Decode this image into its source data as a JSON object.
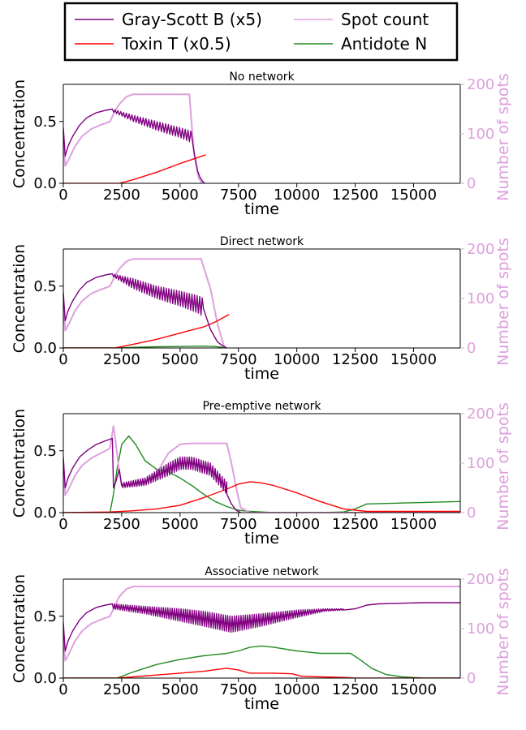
{
  "colors": {
    "B": "#800080",
    "T": "#ff0000",
    "N": "#228b22",
    "spots": "#dda0dd",
    "axis": "#000000"
  },
  "legend": {
    "entries": [
      {
        "key": "B",
        "label": "Gray-Scott B (x5)"
      },
      {
        "key": "spots",
        "label": "Spot count"
      },
      {
        "key": "T",
        "label": "Toxin T (x0.5)"
      },
      {
        "key": "N",
        "label": "Antidote N"
      }
    ]
  },
  "chart_data": [
    {
      "type": "line",
      "title": "No network",
      "xlabel": "time",
      "ylabel": "Concentration",
      "y2label": "Number of spots",
      "xlim": [
        0,
        17000
      ],
      "ylim": [
        0,
        0.8
      ],
      "y2lim": [
        0,
        200
      ],
      "xticks": [
        0,
        2500,
        5000,
        7500,
        10000,
        12500,
        15000
      ],
      "yticks": [
        0.0,
        0.5
      ],
      "y2ticks": [
        0,
        100,
        200
      ],
      "series": [
        {
          "key": "B",
          "name": "Gray-Scott B (x5)",
          "axis": "left",
          "x": [
            0,
            80,
            200,
            400,
            700,
            1000,
            1400,
            1800,
            2100
          ],
          "y": [
            0.45,
            0.22,
            0.3,
            0.38,
            0.47,
            0.53,
            0.57,
            0.59,
            0.6
          ],
          "osc": {
            "x": [
              2100,
              3000,
              4000,
              5000,
              5500
            ],
            "lo": [
              0.58,
              0.5,
              0.43,
              0.37,
              0.33
            ],
            "hi": [
              0.6,
              0.55,
              0.5,
              0.45,
              0.42
            ],
            "period": 120
          },
          "tail": {
            "x": [
              5500,
              5600,
              5750,
              5850,
              5950,
              6050
            ],
            "y": [
              0.38,
              0.25,
              0.1,
              0.05,
              0.02,
              0.0
            ]
          }
        },
        {
          "key": "T",
          "name": "Toxin T (x0.5)",
          "axis": "left",
          "x": [
            0,
            2400,
            3000,
            4000,
            5000,
            6100
          ],
          "y": [
            0,
            0,
            0.03,
            0.09,
            0.16,
            0.23
          ]
        },
        {
          "key": "spots",
          "name": "Spot count",
          "axis": "right",
          "x": [
            0,
            80,
            250,
            500,
            800,
            1200,
            1600,
            2000,
            2200,
            2400,
            2700,
            3000,
            5400,
            5480,
            5600,
            5800,
            5950
          ],
          "y": [
            100,
            35,
            50,
            75,
            95,
            110,
            118,
            125,
            145,
            160,
            175,
            180,
            180,
            130,
            60,
            10,
            0
          ]
        }
      ]
    },
    {
      "type": "line",
      "title": "Direct network",
      "xlabel": "time",
      "ylabel": "Concentration",
      "y2label": "Number of spots",
      "xlim": [
        0,
        17000
      ],
      "ylim": [
        0,
        0.8
      ],
      "y2lim": [
        0,
        200
      ],
      "xticks": [
        0,
        2500,
        5000,
        7500,
        10000,
        12500,
        15000
      ],
      "yticks": [
        0.0,
        0.5
      ],
      "y2ticks": [
        0,
        100,
        200
      ],
      "series": [
        {
          "key": "B",
          "name": "Gray-Scott B (x5)",
          "axis": "left",
          "x": [
            0,
            80,
            200,
            400,
            700,
            1000,
            1400,
            1800,
            2100
          ],
          "y": [
            0.45,
            0.22,
            0.3,
            0.38,
            0.47,
            0.53,
            0.57,
            0.59,
            0.6
          ],
          "osc": {
            "x": [
              2100,
              3000,
              4000,
              5000,
              5800,
              6000
            ],
            "lo": [
              0.58,
              0.48,
              0.4,
              0.34,
              0.28,
              0.25
            ],
            "hi": [
              0.6,
              0.56,
              0.5,
              0.46,
              0.42,
              0.4
            ],
            "period": 110
          },
          "tail": {
            "x": [
              6000,
              6300,
              6600,
              6800,
              7000
            ],
            "y": [
              0.32,
              0.15,
              0.05,
              0.02,
              0.0
            ]
          }
        },
        {
          "key": "T",
          "name": "Toxin T (x0.5)",
          "axis": "left",
          "x": [
            0,
            2200,
            3000,
            4000,
            5000,
            6000,
            6500,
            7100
          ],
          "y": [
            0,
            0,
            0.03,
            0.07,
            0.12,
            0.17,
            0.21,
            0.27
          ]
        },
        {
          "key": "N",
          "name": "Antidote N",
          "axis": "left",
          "x": [
            0,
            2200,
            3000,
            4000,
            5000,
            6000,
            6500,
            6800,
            7000
          ],
          "y": [
            0,
            0,
            0.005,
            0.01,
            0.012,
            0.015,
            0.012,
            0.005,
            0
          ]
        },
        {
          "key": "spots",
          "name": "Spot count",
          "axis": "right",
          "x": [
            0,
            80,
            250,
            500,
            800,
            1200,
            1600,
            2000,
            2200,
            2400,
            2700,
            3000,
            5900,
            6000,
            6300,
            6600,
            6900
          ],
          "y": [
            100,
            35,
            50,
            75,
            95,
            110,
            118,
            125,
            145,
            160,
            175,
            180,
            180,
            165,
            120,
            50,
            0
          ]
        }
      ]
    },
    {
      "type": "line",
      "title": "Pre-emptive network",
      "xlabel": "time",
      "ylabel": "Concentration",
      "y2label": "Number of spots",
      "xlim": [
        0,
        17000
      ],
      "ylim": [
        0,
        0.8
      ],
      "y2lim": [
        0,
        200
      ],
      "xticks": [
        0,
        2500,
        5000,
        7500,
        10000,
        12500,
        15000
      ],
      "yticks": [
        0.0,
        0.5
      ],
      "y2ticks": [
        0,
        100,
        200
      ],
      "series": [
        {
          "key": "B",
          "name": "Gray-Scott B (x5)",
          "axis": "left",
          "x": [
            0,
            80,
            200,
            400,
            700,
            1000,
            1400,
            1800,
            2100,
            2150,
            2250,
            2400,
            2500
          ],
          "y": [
            0.45,
            0.2,
            0.28,
            0.36,
            0.45,
            0.5,
            0.55,
            0.58,
            0.6,
            0.2,
            0.25,
            0.35,
            0.22
          ],
          "osc": {
            "x": [
              2500,
              3500,
              4500,
              5000,
              5500,
              6300,
              7000
            ],
            "lo": [
              0.2,
              0.22,
              0.3,
              0.35,
              0.35,
              0.3,
              0.15
            ],
            "hi": [
              0.24,
              0.28,
              0.4,
              0.45,
              0.45,
              0.4,
              0.25
            ],
            "period": 100
          },
          "tail": {
            "x": [
              7000,
              7200,
              7400,
              7600
            ],
            "y": [
              0.15,
              0.07,
              0.02,
              0.0
            ]
          }
        },
        {
          "key": "T",
          "name": "Toxin T (x0.5)",
          "axis": "left",
          "x": [
            0,
            2000,
            3000,
            4000,
            5000,
            6000,
            7000,
            7500,
            8000,
            8500,
            9000,
            10000,
            11000,
            12000,
            13000,
            14000,
            17000
          ],
          "y": [
            0,
            0.005,
            0.015,
            0.03,
            0.06,
            0.12,
            0.19,
            0.23,
            0.25,
            0.24,
            0.22,
            0.16,
            0.09,
            0.03,
            0.01,
            0.01,
            0.01
          ]
        },
        {
          "key": "N",
          "name": "Antidote N",
          "axis": "left",
          "x": [
            0,
            2000,
            2150,
            2300,
            2500,
            2800,
            3100,
            3500,
            4000,
            4500,
            5000,
            5500,
            6000,
            6500,
            7000,
            7500,
            8000,
            9000,
            10000,
            11000,
            12000,
            12500,
            13000,
            15000,
            17000
          ],
          "y": [
            0,
            0,
            0.15,
            0.35,
            0.55,
            0.62,
            0.55,
            0.42,
            0.35,
            0.33,
            0.28,
            0.22,
            0.15,
            0.09,
            0.05,
            0.02,
            0.01,
            0,
            0,
            0,
            0.005,
            0.03,
            0.07,
            0.08,
            0.09
          ]
        },
        {
          "key": "spots",
          "name": "Spot count",
          "axis": "right",
          "x": [
            0,
            80,
            250,
            500,
            800,
            1200,
            1600,
            2000,
            2150,
            2250,
            2400,
            2500,
            3000,
            3500,
            4000,
            4500,
            5000,
            5500,
            7000,
            7200,
            7400,
            7600,
            8000,
            17000
          ],
          "y": [
            100,
            35,
            50,
            75,
            95,
            110,
            120,
            130,
            175,
            140,
            80,
            55,
            55,
            60,
            80,
            120,
            138,
            140,
            140,
            100,
            50,
            10,
            0,
            0
          ]
        }
      ]
    },
    {
      "type": "line",
      "title": "Associative network",
      "xlabel": "time",
      "ylabel": "Concentration",
      "y2label": "Number of spots",
      "xlim": [
        0,
        17000
      ],
      "ylim": [
        0,
        0.8
      ],
      "y2lim": [
        0,
        200
      ],
      "xticks": [
        0,
        2500,
        5000,
        7500,
        10000,
        12500,
        15000
      ],
      "yticks": [
        0.0,
        0.5
      ],
      "y2ticks": [
        0,
        100,
        200
      ],
      "series": [
        {
          "key": "B",
          "name": "Gray-Scott B (x5)",
          "axis": "left",
          "x": [
            0,
            80,
            200,
            400,
            700,
            1000,
            1400,
            1800,
            2100
          ],
          "y": [
            0.45,
            0.22,
            0.3,
            0.38,
            0.47,
            0.53,
            0.57,
            0.59,
            0.6
          ],
          "osc": {
            "x": [
              2100,
              3500,
              5000,
              6000,
              7200,
              8500,
              10000,
              11200,
              12000
            ],
            "lo": [
              0.56,
              0.52,
              0.46,
              0.42,
              0.37,
              0.42,
              0.49,
              0.54,
              0.55
            ],
            "hi": [
              0.6,
              0.58,
              0.56,
              0.54,
              0.5,
              0.52,
              0.55,
              0.56,
              0.56
            ],
            "period": 95
          },
          "tail": {
            "x": [
              12000,
              12500,
              13000,
              13500,
              14500,
              15500,
              17000
            ],
            "y": [
              0.55,
              0.56,
              0.59,
              0.6,
              0.605,
              0.61,
              0.61
            ]
          }
        },
        {
          "key": "T",
          "name": "Toxin T (x0.5)",
          "axis": "left",
          "x": [
            0,
            2300,
            3000,
            4000,
            5000,
            6000,
            7000,
            7500,
            8000,
            9000,
            9800,
            10200,
            11000,
            12000,
            12500,
            17000
          ],
          "y": [
            0,
            0,
            0.01,
            0.025,
            0.04,
            0.055,
            0.08,
            0.065,
            0.04,
            0.04,
            0.035,
            0.015,
            0.01,
            0.005,
            0,
            0
          ]
        },
        {
          "key": "N",
          "name": "Antidote N",
          "axis": "left",
          "x": [
            0,
            2300,
            3000,
            4000,
            5000,
            6000,
            7000,
            7500,
            8000,
            8500,
            9000,
            10000,
            11000,
            12000,
            12300,
            12700,
            13200,
            13800,
            14500,
            15500,
            17000
          ],
          "y": [
            0,
            0,
            0.05,
            0.11,
            0.15,
            0.18,
            0.2,
            0.22,
            0.25,
            0.26,
            0.25,
            0.22,
            0.2,
            0.2,
            0.2,
            0.15,
            0.08,
            0.03,
            0.01,
            0,
            0
          ]
        },
        {
          "key": "spots",
          "name": "Spot count",
          "axis": "right",
          "x": [
            0,
            80,
            250,
            500,
            800,
            1200,
            1600,
            2000,
            2200,
            2400,
            2700,
            3000,
            17000
          ],
          "y": [
            100,
            35,
            50,
            75,
            95,
            110,
            118,
            125,
            145,
            165,
            180,
            185,
            185
          ]
        }
      ]
    }
  ]
}
